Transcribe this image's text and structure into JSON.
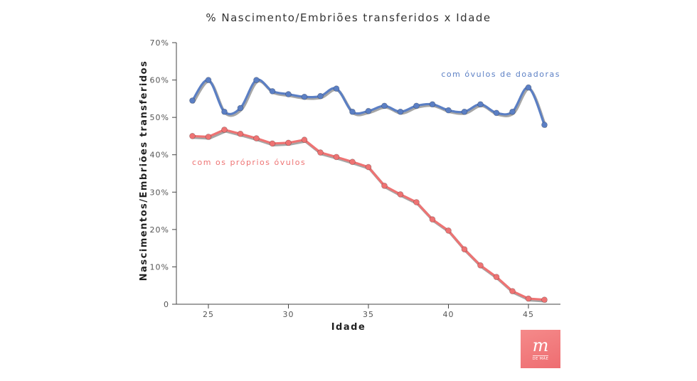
{
  "colors": {
    "donor": "#5b7fc4",
    "own": "#ee7373",
    "axis": "#444444",
    "text": "#333333"
  },
  "chart_data": {
    "type": "line",
    "title": "% Nascimento/Embriões transferidos x Idade",
    "xlabel": "Idade",
    "ylabel": "Nascimentos/Embriões transferidos",
    "xlim": [
      23,
      47
    ],
    "ylim": [
      0,
      70
    ],
    "x_ticks": [
      25,
      30,
      35,
      40,
      45
    ],
    "y_ticks": [
      0,
      10,
      20,
      30,
      40,
      50,
      60,
      70
    ],
    "y_tick_labels": [
      "0",
      "10%",
      "20%",
      "30%",
      "40%",
      "50%",
      "60%",
      "70%"
    ],
    "grid": false,
    "series": [
      {
        "name": "com óvulos de doadoras",
        "color": "#5b7fc4",
        "smooth": true,
        "x": [
          24,
          25,
          26,
          27,
          28,
          29,
          30,
          31,
          32,
          33,
          34,
          35,
          36,
          37,
          38,
          39,
          40,
          41,
          42,
          43,
          44,
          45,
          46
        ],
        "y": [
          54.5,
          60,
          51.5,
          52.5,
          60,
          57,
          56.2,
          55.5,
          55.7,
          57.7,
          51.5,
          51.7,
          53.1,
          51.5,
          53.1,
          53.5,
          51.9,
          51.5,
          53.5,
          51.2,
          51.5,
          58,
          48
        ]
      },
      {
        "name": "com os próprios óvulos",
        "color": "#ee7373",
        "smooth": false,
        "x": [
          24,
          25,
          26,
          27,
          28,
          29,
          30,
          31,
          32,
          33,
          34,
          35,
          36,
          37,
          38,
          39,
          40,
          41,
          42,
          43,
          44,
          45,
          46
        ],
        "y": [
          45,
          44.8,
          46.7,
          45.6,
          44.4,
          43,
          43.2,
          44,
          40.6,
          39.4,
          38.1,
          36.7,
          31.7,
          29.4,
          27.3,
          22.7,
          19.7,
          14.7,
          10.4,
          7.3,
          3.5,
          1.5,
          1.2
        ]
      }
    ],
    "annotations": [
      {
        "text": "com óvulos de doadoras",
        "series": 0
      },
      {
        "text": "com os próprios óvulos",
        "series": 1
      }
    ]
  },
  "logo": {
    "letter": "m",
    "tagline": "DE MÃE"
  }
}
